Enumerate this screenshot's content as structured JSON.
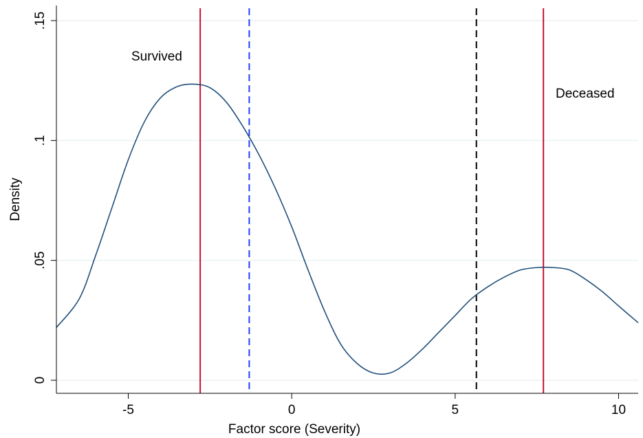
{
  "chart_data": {
    "type": "line",
    "title": "",
    "xlabel": "Factor score (Severity)",
    "ylabel": "Density",
    "xlim": [
      -7.2,
      10.6
    ],
    "ylim": [
      0,
      0.155
    ],
    "x_ticks": [
      {
        "value": -5,
        "label": "-5"
      },
      {
        "value": 0,
        "label": "0"
      },
      {
        "value": 5,
        "label": "5"
      },
      {
        "value": 10,
        "label": "10"
      }
    ],
    "y_ticks": [
      {
        "value": 0,
        "label": "0"
      },
      {
        "value": 0.05,
        "label": ".05"
      },
      {
        "value": 0.1,
        "label": ".1"
      },
      {
        "value": 0.15,
        "label": ".15"
      }
    ],
    "grid": "horizontal",
    "series": [
      {
        "color": "#1f4e79",
        "x": [
          -7.2,
          -6.5,
          -6.0,
          -5.5,
          -5.0,
          -4.5,
          -4.0,
          -3.5,
          -3.0,
          -2.5,
          -2.0,
          -1.5,
          -1.0,
          -0.5,
          0.0,
          0.5,
          1.0,
          1.5,
          2.0,
          2.5,
          3.0,
          3.5,
          4.0,
          4.5,
          5.0,
          5.5,
          6.0,
          6.5,
          7.0,
          7.5,
          8.0,
          8.5,
          9.0,
          9.5,
          10.0,
          10.6
        ],
        "y": [
          0.022,
          0.034,
          0.052,
          0.072,
          0.092,
          0.108,
          0.118,
          0.1225,
          0.1235,
          0.122,
          0.116,
          0.106,
          0.094,
          0.08,
          0.064,
          0.046,
          0.029,
          0.015,
          0.007,
          0.003,
          0.003,
          0.007,
          0.013,
          0.02,
          0.027,
          0.034,
          0.039,
          0.043,
          0.046,
          0.047,
          0.047,
          0.046,
          0.042,
          0.037,
          0.031,
          0.024
        ]
      }
    ],
    "reference_lines": [
      {
        "x": -2.8,
        "color": "#c8102e",
        "style": "solid"
      },
      {
        "x": -1.3,
        "color": "#1f3fff",
        "style": "dashed"
      },
      {
        "x": 5.65,
        "color": "#000000",
        "style": "dashed"
      },
      {
        "x": 7.7,
        "color": "#c8102e",
        "style": "solid"
      }
    ],
    "annotations": [
      {
        "text": "Survived"
      },
      {
        "text": "Deceased"
      }
    ]
  }
}
